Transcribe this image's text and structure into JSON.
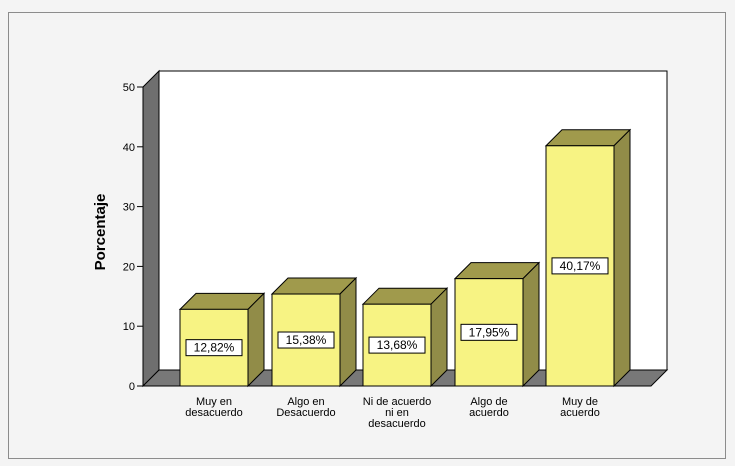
{
  "chart_data": {
    "type": "bar",
    "ylabel": "Porcentaje",
    "categories": [
      [
        "Muy en",
        "desacuerdo"
      ],
      [
        "Algo en",
        "Desacuerdo"
      ],
      [
        "Ni de acuerdo",
        "ni en",
        "desacuerdo"
      ],
      [
        "Algo de",
        "acuerdo"
      ],
      [
        "Muy de",
        "acuerdo"
      ]
    ],
    "values": [
      12.82,
      15.38,
      13.68,
      17.95,
      40.17
    ],
    "data_labels": [
      "12,82%",
      "15,38%",
      "13,68%",
      "17,95%",
      "40,17%"
    ],
    "yticks": [
      0,
      10,
      20,
      30,
      40,
      50
    ],
    "ylim": [
      0,
      50
    ],
    "grid": false,
    "legend": "none",
    "colors": {
      "bar_front": "#f7f383",
      "bar_top": "#a09a4c",
      "bar_side": "#918c48",
      "back_wall": "#ffffff",
      "side_wall": "#6f6f6f",
      "floor": "#787878",
      "frame_background": "#f4f4f4"
    }
  }
}
